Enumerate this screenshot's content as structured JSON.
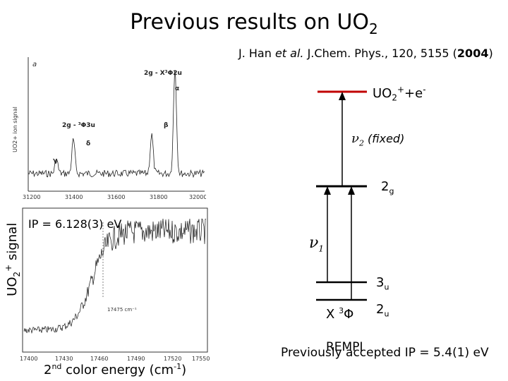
{
  "title": "Previous results on UO",
  "title_sub": "2",
  "citation": {
    "authors": "J. Han ",
    "etal": "et al.",
    "journal": " J.Chem. Phys., 120, 5155 (",
    "year": "2004",
    "close": ")"
  },
  "spectrum_a": {
    "panel_label": "a",
    "y_axis": "UO2+ ion signal",
    "x_ticks": [
      "31200",
      "31400",
      "31600",
      "31800",
      "32000"
    ],
    "annotations": [
      "2g - X³Φ2u",
      "α",
      "2g - ³Φ3u",
      "β",
      "δ",
      "γ"
    ]
  },
  "spectrum_b": {
    "x_ticks": [
      "17400",
      "17430",
      "17460",
      "17490",
      "17520",
      "17550"
    ],
    "marker_label": "17475 cm⁻¹"
  },
  "ylabel": {
    "prefix": "UO",
    "sub": "2",
    "sup": "+",
    "suffix": " signal"
  },
  "ip_label": "IP = 6.128(3) eV",
  "xlabel": {
    "prefix": "2",
    "sup1": "nd",
    "mid": " color energy (cm",
    "sup2": "-1",
    "suffix": ")"
  },
  "diagram": {
    "top_level": {
      "prefix": "UO",
      "sub": "2",
      "sup": "+",
      "suffix": "+e",
      "sup2": "-"
    },
    "nu2": {
      "nu": "ν",
      "sub": "2",
      "text": " (fixed)"
    },
    "level_2g": {
      "main": "2",
      "sub": "g"
    },
    "nu1": {
      "nu": "ν",
      "sub": "1"
    },
    "level_3u": {
      "main": "3",
      "sub": "u"
    },
    "level_2u": {
      "main": "2",
      "sub": "u"
    },
    "ground": {
      "main": "X ",
      "sup": "3",
      "sym": "Φ"
    }
  },
  "rempi": "REMPI",
  "prev_ip": "Previously accepted IP = 5.4(1) eV",
  "colors": {
    "ionization_level": "#c00000",
    "lines": "#000000"
  }
}
